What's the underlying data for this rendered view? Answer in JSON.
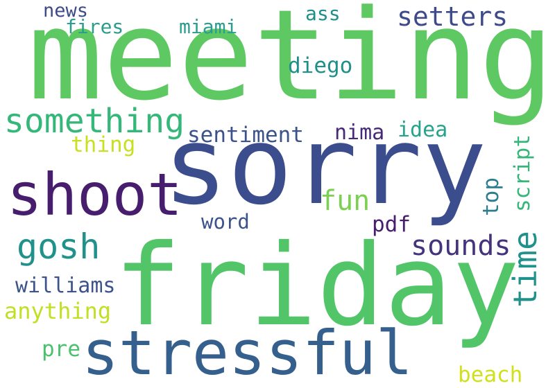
{
  "words": {
    "meeting": {
      "text": "meeting",
      "color": "#5ec962"
    },
    "sorry": {
      "text": "sorry",
      "color": "#3b4d8d"
    },
    "friday": {
      "text": "friday",
      "color": "#52c569"
    },
    "stressful": {
      "text": "stressful",
      "color": "#355f8d"
    },
    "shoot": {
      "text": "shoot",
      "color": "#471d6e"
    },
    "something": {
      "text": "something",
      "color": "#35b779"
    },
    "gosh": {
      "text": "gosh",
      "color": "#21918c"
    },
    "setters": {
      "text": "setters",
      "color": "#3e4a89"
    },
    "time": {
      "text": "time",
      "color": "#21918c"
    },
    "sounds": {
      "text": "sounds",
      "color": "#46337e"
    },
    "fun": {
      "text": "fun",
      "color": "#7ad151"
    },
    "miami": {
      "text": "miami",
      "color": "#2a9d8f"
    },
    "fires": {
      "text": "fires",
      "color": "#2a9d8f"
    },
    "news": {
      "text": "news",
      "color": "#3e4a89"
    },
    "ass": {
      "text": "ass",
      "color": "#1f8f8a"
    },
    "diego": {
      "text": "diego",
      "color": "#1f8f8a"
    },
    "sentiment": {
      "text": "sentiment",
      "color": "#3b528b"
    },
    "nima": {
      "text": "nima",
      "color": "#482878"
    },
    "idea": {
      "text": "idea",
      "color": "#26a38a"
    },
    "thing": {
      "text": "thing",
      "color": "#c8e020"
    },
    "script": {
      "text": "script",
      "color": "#35b779"
    },
    "top": {
      "text": "top",
      "color": "#2c7e8e"
    },
    "word": {
      "text": "word",
      "color": "#3b528b"
    },
    "pdf": {
      "text": "pdf",
      "color": "#471d6e"
    },
    "williams": {
      "text": "williams",
      "color": "#3b528b"
    },
    "anything": {
      "text": "anything",
      "color": "#c2df23"
    },
    "pre": {
      "text": "pre",
      "color": "#4ac16d"
    },
    "beach": {
      "text": "beach",
      "color": "#d0e11c"
    }
  }
}
